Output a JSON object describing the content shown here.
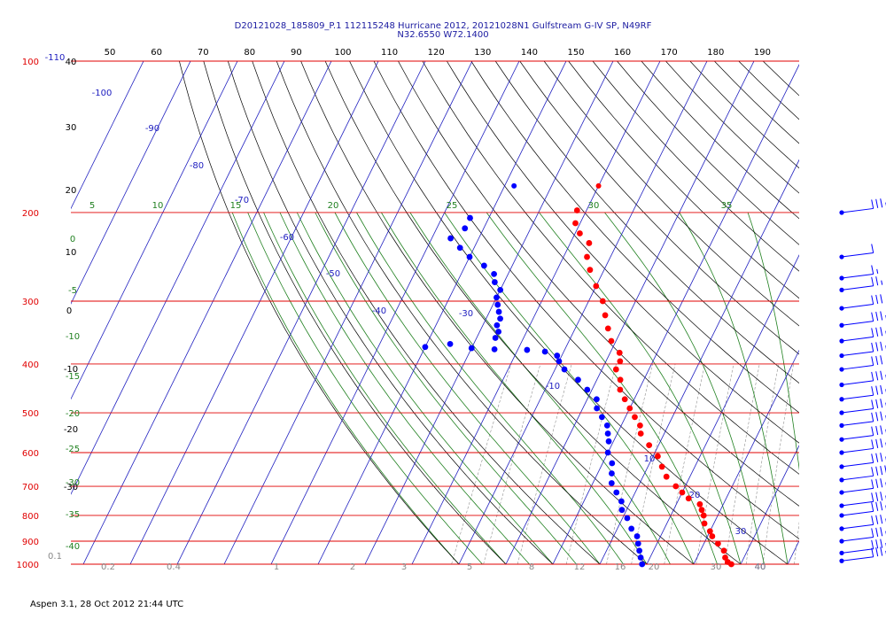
{
  "header": {
    "title_line1": "D20121028_185809_P.1 112115248 Hurricane 2012, 20121028N1 Gulfstream G-IV SP, N49RF",
    "title_line2": "N32.6550 W72.1400"
  },
  "footer": {
    "text": "Aspen 3.1, 28 Oct 2012  21:44 UTC"
  },
  "colors": {
    "isobar": "#e00000",
    "isotherm": "#2020c0",
    "dry_adiabat": "#000000",
    "moist_adiabat": "#208020",
    "mixing_ratio": "#909090",
    "temperature": "#ff0000",
    "dewpoint": "#0000ff"
  },
  "chart_data": {
    "type": "skew-t",
    "pressure_levels": [
      100,
      200,
      300,
      400,
      500,
      600,
      700,
      800,
      900,
      1000
    ],
    "pressure_labels": [
      "100",
      "200",
      "300",
      "400",
      "500",
      "600",
      "700",
      "800",
      "900",
      "1000"
    ],
    "top_scale_labels": [
      "50",
      "60",
      "70",
      "80",
      "90",
      "100",
      "110",
      "120",
      "130",
      "140",
      "150",
      "160",
      "170",
      "180",
      "190"
    ],
    "top_scale_extra": [
      "-110",
      "40"
    ],
    "isotherm_labels": [
      "-100",
      "-90",
      "-80",
      "-70",
      "-60",
      "-50",
      "-40",
      "-30",
      "-10",
      "10",
      "20",
      "30",
      "40"
    ],
    "left_scale_labels": [
      "40",
      "30",
      "20",
      "10",
      "0",
      "-10",
      "-20",
      "-30"
    ],
    "moist_adiabat_labels": [
      "0",
      "-5",
      "-10",
      "-15",
      "-20",
      "-25",
      "-30",
      "-35",
      "-40"
    ],
    "moist_adiabat_top_labels": [
      "5",
      "10",
      "15",
      "20",
      "25",
      "30",
      "35"
    ],
    "mixing_ratio_labels": [
      "0.1",
      "0.2",
      "0.4",
      "1",
      "2",
      "3",
      "5",
      "8",
      "12",
      "16",
      "20",
      "30",
      "40"
    ],
    "temperature_marker": {
      "pressure": 177,
      "temp": -50
    },
    "dewpoint_marker": {
      "pressure": 177,
      "temp": -68
    },
    "temperature_profile": [
      [
        198,
        -52
      ],
      [
        210,
        -51
      ],
      [
        220,
        -49
      ],
      [
        230,
        -46
      ],
      [
        245,
        -45
      ],
      [
        260,
        -43
      ],
      [
        280,
        -40
      ],
      [
        300,
        -37
      ],
      [
        320,
        -35
      ],
      [
        340,
        -33
      ],
      [
        360,
        -31
      ],
      [
        380,
        -28
      ],
      [
        395,
        -27
      ],
      [
        410,
        -27
      ],
      [
        430,
        -25
      ],
      [
        450,
        -24
      ],
      [
        470,
        -22
      ],
      [
        490,
        -20
      ],
      [
        510,
        -18
      ],
      [
        530,
        -16
      ],
      [
        550,
        -15
      ],
      [
        580,
        -12
      ],
      [
        610,
        -9
      ],
      [
        640,
        -7
      ],
      [
        670,
        -5
      ],
      [
        700,
        -2
      ],
      [
        720,
        0
      ],
      [
        740,
        2
      ],
      [
        760,
        5
      ],
      [
        780,
        6
      ],
      [
        800,
        7
      ],
      [
        830,
        8
      ],
      [
        860,
        10
      ],
      [
        880,
        11
      ],
      [
        910,
        13
      ],
      [
        940,
        15
      ],
      [
        970,
        16
      ],
      [
        990,
        17
      ],
      [
        1000,
        18
      ]
    ],
    "dewpoint_profile": [
      [
        205,
        -74
      ],
      [
        215,
        -74
      ],
      [
        225,
        -76
      ],
      [
        235,
        -73
      ],
      [
        245,
        -70
      ],
      [
        255,
        -66
      ],
      [
        265,
        -63
      ],
      [
        275,
        -62
      ],
      [
        285,
        -60
      ],
      [
        295,
        -60
      ],
      [
        305,
        -59
      ],
      [
        315,
        -58
      ],
      [
        325,
        -57
      ],
      [
        335,
        -57
      ],
      [
        345,
        -56
      ],
      [
        355,
        -56
      ],
      [
        365,
        -65
      ],
      [
        370,
        -70
      ],
      [
        372,
        -60
      ],
      [
        374,
        -55
      ],
      [
        375,
        -48
      ],
      [
        378,
        -44
      ],
      [
        385,
        -41
      ],
      [
        395,
        -40
      ],
      [
        410,
        -38
      ],
      [
        430,
        -34
      ],
      [
        450,
        -31
      ],
      [
        470,
        -28
      ],
      [
        490,
        -27
      ],
      [
        510,
        -25
      ],
      [
        530,
        -23
      ],
      [
        550,
        -22
      ],
      [
        570,
        -21
      ],
      [
        600,
        -20
      ],
      [
        630,
        -18
      ],
      [
        660,
        -17
      ],
      [
        690,
        -16
      ],
      [
        720,
        -14
      ],
      [
        750,
        -12
      ],
      [
        780,
        -11
      ],
      [
        810,
        -9
      ],
      [
        850,
        -7
      ],
      [
        880,
        -5
      ],
      [
        910,
        -4
      ],
      [
        940,
        -3
      ],
      [
        970,
        -2
      ],
      [
        1000,
        -1
      ]
    ],
    "wind_barbs": [
      {
        "pressure": 200,
        "speed": 35,
        "dir": 250
      },
      {
        "pressure": 245,
        "speed": 10,
        "dir": 250
      },
      {
        "pressure": 270,
        "speed": 15,
        "dir": 250
      },
      {
        "pressure": 285,
        "speed": 25,
        "dir": 250
      },
      {
        "pressure": 310,
        "speed": 30,
        "dir": 250
      },
      {
        "pressure": 335,
        "speed": 35,
        "dir": 250
      },
      {
        "pressure": 360,
        "speed": 35,
        "dir": 250
      },
      {
        "pressure": 385,
        "speed": 35,
        "dir": 250
      },
      {
        "pressure": 410,
        "speed": 30,
        "dir": 250
      },
      {
        "pressure": 440,
        "speed": 35,
        "dir": 250
      },
      {
        "pressure": 470,
        "speed": 35,
        "dir": 250
      },
      {
        "pressure": 500,
        "speed": 35,
        "dir": 250
      },
      {
        "pressure": 530,
        "speed": 35,
        "dir": 250
      },
      {
        "pressure": 565,
        "speed": 35,
        "dir": 250
      },
      {
        "pressure": 600,
        "speed": 35,
        "dir": 250
      },
      {
        "pressure": 640,
        "speed": 35,
        "dir": 250
      },
      {
        "pressure": 680,
        "speed": 50,
        "dir": 250
      },
      {
        "pressure": 720,
        "speed": 35,
        "dir": 250
      },
      {
        "pressure": 765,
        "speed": 35,
        "dir": 250
      },
      {
        "pressure": 800,
        "speed": 35,
        "dir": 250
      },
      {
        "pressure": 850,
        "speed": 35,
        "dir": 250
      },
      {
        "pressure": 900,
        "speed": 35,
        "dir": 250
      },
      {
        "pressure": 950,
        "speed": 35,
        "dir": 250
      },
      {
        "pressure": 985,
        "speed": 35,
        "dir": 250
      }
    ]
  }
}
